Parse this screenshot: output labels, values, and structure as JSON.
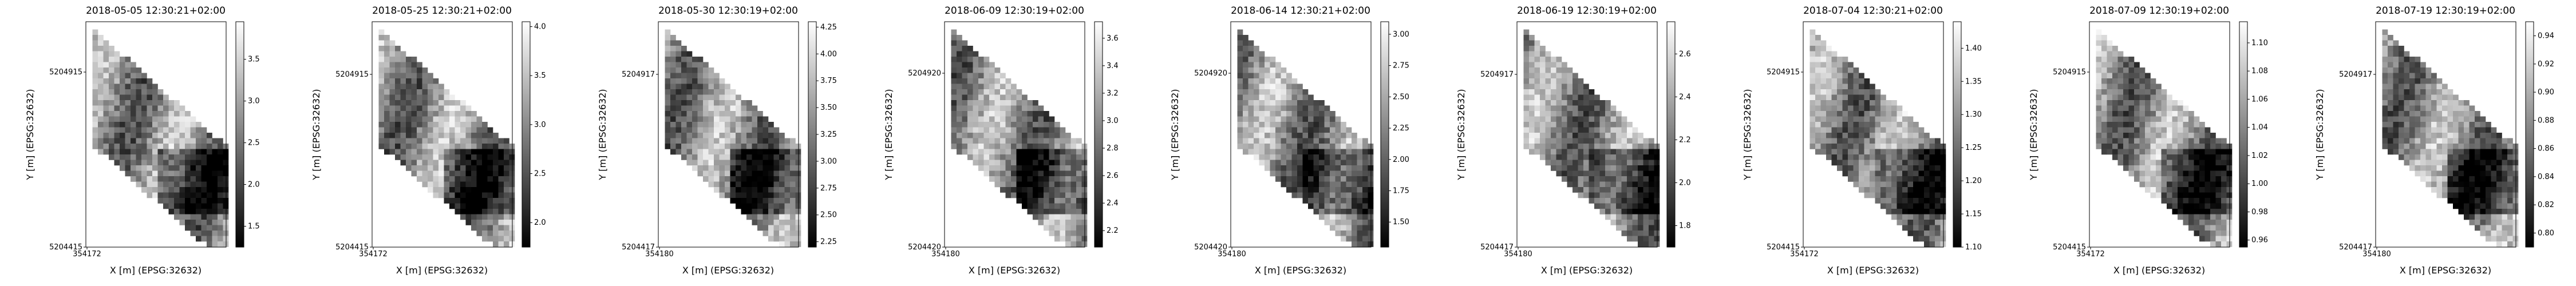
{
  "chart_data": [
    {
      "type": "heatmap",
      "title": "2018-05-05 12:30:21+02:00",
      "xlabel": "X [m] (EPSG:32632)",
      "ylabel": "Y [m] (EPSG:32632)",
      "x_ticks": [
        "354172"
      ],
      "y_ticks": [
        "5204415",
        "5204915"
      ],
      "cbar_ticks": [
        "1.5",
        "2.0",
        "2.5",
        "3.0",
        "3.5"
      ],
      "cbar_range": [
        1.25,
        3.95
      ],
      "colormap": "gray"
    },
    {
      "type": "heatmap",
      "title": "2018-05-25 12:30:21+02:00",
      "xlabel": "X [m] (EPSG:32632)",
      "ylabel": "Y [m] (EPSG:32632)",
      "x_ticks": [
        "354172"
      ],
      "y_ticks": [
        "5204415",
        "5204915"
      ],
      "cbar_ticks": [
        "2.0",
        "2.5",
        "3.0",
        "3.5",
        "4.0"
      ],
      "cbar_range": [
        1.75,
        4.05
      ],
      "colormap": "gray"
    },
    {
      "type": "heatmap",
      "title": "2018-05-30 12:30:19+02:00",
      "xlabel": "X [m] (EPSG:32632)",
      "ylabel": "Y [m] (EPSG:32632)",
      "x_ticks": [
        "354180"
      ],
      "y_ticks": [
        "5204417",
        "5204917"
      ],
      "cbar_ticks": [
        "2.25",
        "2.50",
        "2.75",
        "3.00",
        "3.25",
        "3.50",
        "3.75",
        "4.00",
        "4.25"
      ],
      "cbar_range": [
        2.2,
        4.3
      ],
      "colormap": "gray"
    },
    {
      "type": "heatmap",
      "title": "2018-06-09 12:30:19+02:00",
      "xlabel": "X [m] (EPSG:32632)",
      "ylabel": "Y [m] (EPSG:32632)",
      "x_ticks": [
        "354180"
      ],
      "y_ticks": [
        "5204420",
        "5204920"
      ],
      "cbar_ticks": [
        "2.2",
        "2.4",
        "2.6",
        "2.8",
        "3.0",
        "3.2",
        "3.4",
        "3.6"
      ],
      "cbar_range": [
        2.08,
        3.72
      ],
      "colormap": "gray"
    },
    {
      "type": "heatmap",
      "title": "2018-06-14 12:30:21+02:00",
      "xlabel": "X [m] (EPSG:32632)",
      "ylabel": "Y [m] (EPSG:32632)",
      "x_ticks": [
        "354180"
      ],
      "y_ticks": [
        "5204420",
        "5204920"
      ],
      "cbar_ticks": [
        "1.50",
        "1.75",
        "2.00",
        "2.25",
        "2.50",
        "2.75",
        "3.00"
      ],
      "cbar_range": [
        1.3,
        3.1
      ],
      "colormap": "gray"
    },
    {
      "type": "heatmap",
      "title": "2018-06-19 12:30:19+02:00",
      "xlabel": "X [m] (EPSG:32632)",
      "ylabel": "Y [m] (EPSG:32632)",
      "x_ticks": [
        "354180"
      ],
      "y_ticks": [
        "5204417",
        "5204917"
      ],
      "cbar_ticks": [
        "1.8",
        "2.0",
        "2.2",
        "2.4",
        "2.6"
      ],
      "cbar_range": [
        1.7,
        2.75
      ],
      "colormap": "gray"
    },
    {
      "type": "heatmap",
      "title": "2018-07-04 12:30:21+02:00",
      "xlabel": "X [m] (EPSG:32632)",
      "ylabel": "Y [m] (EPSG:32632)",
      "x_ticks": [
        "354172"
      ],
      "y_ticks": [
        "5204415",
        "5204915"
      ],
      "cbar_ticks": [
        "1.10",
        "1.15",
        "1.20",
        "1.25",
        "1.30",
        "1.35",
        "1.40"
      ],
      "cbar_range": [
        1.1,
        1.44
      ],
      "colormap": "gray"
    },
    {
      "type": "heatmap",
      "title": "2018-07-09 12:30:19+02:00",
      "xlabel": "X [m] (EPSG:32632)",
      "ylabel": "Y [m] (EPSG:32632)",
      "x_ticks": [
        "354172"
      ],
      "y_ticks": [
        "5204415",
        "5204915"
      ],
      "cbar_ticks": [
        "0.96",
        "0.98",
        "1.00",
        "1.02",
        "1.04",
        "1.06",
        "1.08",
        "1.10"
      ],
      "cbar_range": [
        0.955,
        1.115
      ],
      "colormap": "gray"
    },
    {
      "type": "heatmap",
      "title": "2018-07-19 12:30:19+02:00",
      "xlabel": "X [m] (EPSG:32632)",
      "ylabel": "Y [m] (EPSG:32632)",
      "x_ticks": [
        "354180"
      ],
      "y_ticks": [
        "5204417",
        "5204917"
      ],
      "cbar_ticks": [
        "0.80",
        "0.82",
        "0.84",
        "0.86",
        "0.88",
        "0.90",
        "0.92",
        "0.94"
      ],
      "cbar_range": [
        0.79,
        0.95
      ],
      "colormap": "gray"
    }
  ]
}
